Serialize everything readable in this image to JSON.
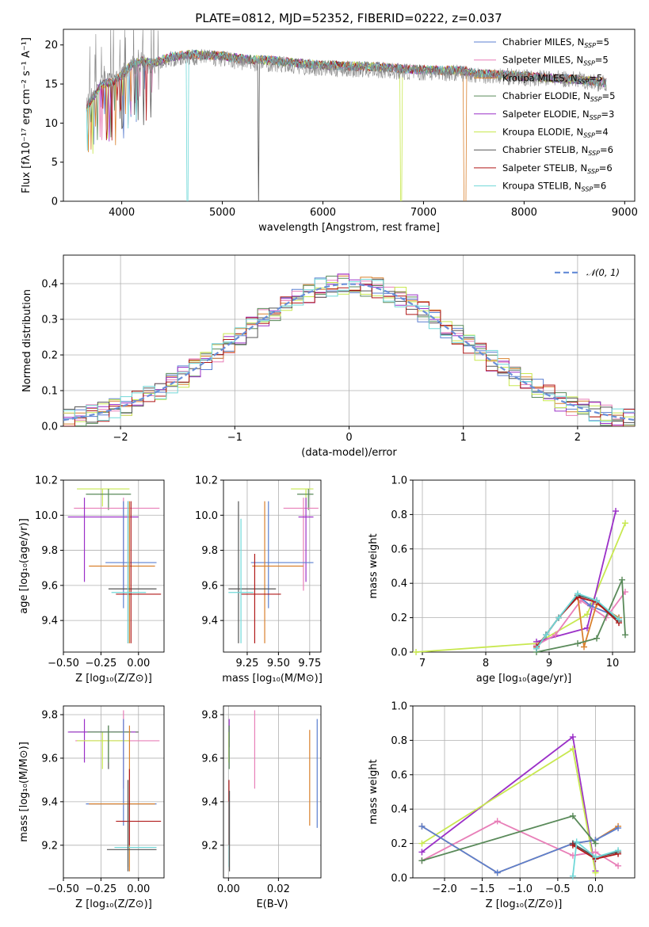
{
  "title": "PLATE=0812, MJD=52352, FIBERID=0222, z=0.037",
  "colors": {
    "chabrier_miles": "#5b7fd0",
    "salpeter_miles": "#e87fb8",
    "kroupa_miles": "#d9812e",
    "chabrier_elodie": "#5a8a5a",
    "salpeter_elodie": "#9b30c8",
    "kroupa_elodie": "#c8e850",
    "chabrier_stelib": "#555555",
    "salpeter_stelib": "#b01818",
    "kroupa_stelib": "#70d8d8",
    "gauss": "#6a8fd8",
    "grid": "#b0b0b0"
  },
  "legend": [
    {
      "key": "chabrier_miles",
      "main": "Chabrier MILES, N",
      "sub": "SSP",
      "eq": "=5"
    },
    {
      "key": "salpeter_miles",
      "main": "Salpeter MILES, N",
      "sub": "SSP",
      "eq": "=5"
    },
    {
      "key": "kroupa_miles",
      "main": "Kroupa MILES, N",
      "sub": "SSP",
      "eq": "=5"
    },
    {
      "key": "chabrier_elodie",
      "main": "Chabrier ELODIE, N",
      "sub": "SSP",
      "eq": "=5"
    },
    {
      "key": "salpeter_elodie",
      "main": "Salpeter ELODIE, N",
      "sub": "SSP",
      "eq": "=3"
    },
    {
      "key": "kroupa_elodie",
      "main": "Kroupa ELODIE, N",
      "sub": "SSP",
      "eq": "=4"
    },
    {
      "key": "chabrier_stelib",
      "main": "Chabrier STELIB, N",
      "sub": "SSP",
      "eq": "=6"
    },
    {
      "key": "salpeter_stelib",
      "main": "Salpeter STELIB, N",
      "sub": "SSP",
      "eq": "=6"
    },
    {
      "key": "kroupa_stelib",
      "main": "Kroupa STELIB, N",
      "sub": "SSP",
      "eq": "=6"
    }
  ],
  "chart_data": [
    {
      "id": "spectrum",
      "type": "line",
      "xlabel": "wavelength [Angstrom, rest frame]",
      "ylabel": "Flux [fλ10⁻¹⁷ erg cm⁻² s⁻¹ A⁻¹]",
      "xlim": [
        3420,
        9100
      ],
      "ylim": [
        0,
        22
      ],
      "xticks": [
        "4000",
        "5000",
        "6000",
        "7000",
        "8000",
        "9000"
      ],
      "yticks": [
        "0",
        "5",
        "10",
        "15",
        "20"
      ],
      "data_x": [
        3650,
        3800,
        3900,
        4000,
        4100,
        4200,
        4300,
        4500,
        4700,
        5000,
        5200,
        5500,
        5800,
        6000,
        6500,
        7000,
        7400,
        7500,
        8000,
        8500,
        8800
      ],
      "data_y": [
        12.5,
        15.5,
        15.8,
        16.5,
        17.2,
        17.5,
        17.3,
        18.2,
        18.5,
        18.3,
        17.8,
        17.6,
        17.2,
        17.0,
        16.8,
        16.5,
        16.4,
        16.2,
        15.8,
        15.6,
        15.0
      ],
      "model_y": [
        12.0,
        15.0,
        15.2,
        16.2,
        17.5,
        18.0,
        17.6,
        18.5,
        18.8,
        18.6,
        18.2,
        18.0,
        17.6,
        17.4,
        17.2,
        16.8,
        16.7,
        16.4,
        16.0,
        15.6,
        15.2
      ],
      "gap_series": {
        "kroupa_miles": 7410,
        "kroupa_elodie": 6780,
        "chabrier_stelib": 5360,
        "kroupa_stelib": 4650
      },
      "legend": "upper right"
    },
    {
      "id": "residuals",
      "type": "step",
      "xlabel": "(data-model)/error",
      "ylabel": "Normed distribution",
      "xlim": [
        -2.5,
        2.5
      ],
      "ylim": [
        0,
        0.48
      ],
      "xticks": [
        "−2",
        "−1",
        "0",
        "1",
        "2"
      ],
      "yticks": [
        "0.0",
        "0.1",
        "0.2",
        "0.3",
        "0.4"
      ],
      "gauss_label": "𝒩(0, 1)",
      "bin_width": 0.1,
      "bin_start": -2.5
    },
    {
      "id": "age_vs_Z",
      "type": "errorbar",
      "xlabel": "Z [log₁₀(Z/Z⊙)]",
      "ylabel": "age  [log₁₀(age/yr)]",
      "xlim": [
        -0.5,
        0.17
      ],
      "ylim": [
        9.22,
        10.2
      ],
      "xticks": [
        "−0.50",
        "−0.25",
        "0.00"
      ],
      "yticks": [
        "9.4",
        "9.6",
        "9.8",
        "10.0",
        "10.2"
      ],
      "points": [
        {
          "key": "kroupa_elodie",
          "x": -0.24,
          "xl": -0.41,
          "xh": -0.06,
          "y": 10.15,
          "yl": 10.05,
          "yh": 10.15
        },
        {
          "key": "chabrier_elodie",
          "x": -0.2,
          "xl": -0.35,
          "xh": -0.05,
          "y": 10.12,
          "yl": 10.03,
          "yh": 10.15
        },
        {
          "key": "salpeter_miles",
          "x": -0.1,
          "xl": -0.43,
          "xh": 0.14,
          "y": 10.04,
          "yl": 9.57,
          "yh": 10.1
        },
        {
          "key": "salpeter_elodie",
          "x": -0.36,
          "xl": -0.47,
          "xh": 0.0,
          "y": 9.99,
          "yl": 9.62,
          "yh": 10.1
        },
        {
          "key": "chabrier_miles",
          "x": -0.1,
          "xl": -0.22,
          "xh": 0.12,
          "y": 9.73,
          "yl": 9.47,
          "yh": 10.08
        },
        {
          "key": "kroupa_miles",
          "x": -0.06,
          "xl": -0.33,
          "xh": 0.11,
          "y": 9.71,
          "yl": 9.27,
          "yh": 10.08
        },
        {
          "key": "chabrier_stelib",
          "x": -0.07,
          "xl": -0.2,
          "xh": 0.12,
          "y": 9.58,
          "yl": 9.27,
          "yh": 10.08
        },
        {
          "key": "salpeter_stelib",
          "x": -0.05,
          "xl": -0.15,
          "xh": 0.15,
          "y": 9.55,
          "yl": 9.27,
          "yh": 10.08
        },
        {
          "key": "kroupa_stelib",
          "x": -0.07,
          "xl": -0.18,
          "xh": 0.05,
          "y": 9.56,
          "yl": 9.27,
          "yh": 10.08
        }
      ]
    },
    {
      "id": "age_vs_mass",
      "type": "errorbar",
      "xlabel": "mass [log₁₀(M/M⊙)]",
      "ylabel": "",
      "xlim": [
        9.06,
        9.84
      ],
      "ylim": [
        9.22,
        10.2
      ],
      "xticks": [
        "9.25",
        "9.50",
        "9.75"
      ],
      "yticks": [
        "9.4",
        "9.6",
        "9.8",
        "10.0",
        "10.2"
      ],
      "points": [
        {
          "key": "kroupa_elodie",
          "x": 9.72,
          "xl": 9.6,
          "xh": 9.78,
          "y": 10.15,
          "yl": 10.05,
          "yh": 10.15
        },
        {
          "key": "chabrier_elodie",
          "x": 9.74,
          "xl": 9.65,
          "xh": 9.78,
          "y": 10.12,
          "yl": 10.03,
          "yh": 10.15
        },
        {
          "key": "salpeter_miles",
          "x": 9.7,
          "xl": 9.54,
          "xh": 9.82,
          "y": 10.04,
          "yl": 9.57,
          "yh": 10.1
        },
        {
          "key": "salpeter_elodie",
          "x": 9.72,
          "xl": 9.66,
          "xh": 9.78,
          "y": 9.99,
          "yl": 9.62,
          "yh": 10.1
        },
        {
          "key": "chabrier_miles",
          "x": 9.42,
          "xl": 9.28,
          "xh": 9.78,
          "y": 9.73,
          "yl": 9.47,
          "yh": 10.08
        },
        {
          "key": "kroupa_miles",
          "x": 9.39,
          "xl": 9.29,
          "xh": 9.7,
          "y": 9.71,
          "yl": 9.27,
          "yh": 10.08
        },
        {
          "key": "chabrier_stelib",
          "x": 9.18,
          "xl": 9.1,
          "xh": 9.48,
          "y": 9.58,
          "yl": 9.27,
          "yh": 10.08
        },
        {
          "key": "salpeter_stelib",
          "x": 9.31,
          "xl": 9.2,
          "xh": 9.52,
          "y": 9.55,
          "yl": 9.27,
          "yh": 9.78
        },
        {
          "key": "kroupa_stelib",
          "x": 9.2,
          "xl": 9.1,
          "xh": 9.3,
          "y": 9.56,
          "yl": 9.27,
          "yh": 9.98
        }
      ]
    },
    {
      "id": "weight_vs_age",
      "type": "line",
      "xlabel": "age  [log₁₀(age/yr)]",
      "ylabel": "mass weight",
      "xlim": [
        6.85,
        10.35
      ],
      "ylim": [
        0,
        1.0
      ],
      "xticks": [
        "7",
        "8",
        "9",
        "10"
      ],
      "yticks": [
        "0.0",
        "0.2",
        "0.4",
        "0.6",
        "0.8",
        "1.0"
      ],
      "series": [
        {
          "key": "kroupa_elodie",
          "x": [
            6.9,
            8.8,
            9.6,
            10.2
          ],
          "y": [
            0.0,
            0.05,
            0.22,
            0.75
          ]
        },
        {
          "key": "salpeter_elodie",
          "x": [
            8.8,
            9.6,
            10.05
          ],
          "y": [
            0.06,
            0.14,
            0.82
          ]
        },
        {
          "key": "salpeter_miles",
          "x": [
            8.8,
            9.1,
            9.5,
            9.9,
            10.2
          ],
          "y": [
            0.04,
            0.1,
            0.3,
            0.2,
            0.35
          ]
        },
        {
          "key": "chabrier_miles",
          "x": [
            8.8,
            8.95,
            9.15,
            9.45,
            9.65,
            10.1
          ],
          "y": [
            0.02,
            0.1,
            0.2,
            0.33,
            0.27,
            0.2
          ]
        },
        {
          "key": "kroupa_miles",
          "x": [
            8.8,
            8.95,
            9.15,
            9.45,
            9.55,
            9.75,
            10.1
          ],
          "y": [
            0.02,
            0.1,
            0.2,
            0.33,
            0.03,
            0.28,
            0.2
          ]
        },
        {
          "key": "chabrier_elodie",
          "x": [
            8.8,
            9.45,
            9.75,
            10.15,
            10.2
          ],
          "y": [
            0.0,
            0.05,
            0.08,
            0.42,
            0.1
          ]
        },
        {
          "key": "chabrier_stelib",
          "x": [
            8.8,
            8.95,
            9.15,
            9.45,
            9.75,
            10.1
          ],
          "y": [
            0.02,
            0.1,
            0.2,
            0.33,
            0.3,
            0.18
          ]
        },
        {
          "key": "salpeter_stelib",
          "x": [
            8.8,
            8.95,
            9.15,
            9.45,
            9.75,
            10.1
          ],
          "y": [
            0.03,
            0.1,
            0.2,
            0.32,
            0.29,
            0.17
          ]
        },
        {
          "key": "kroupa_stelib",
          "x": [
            8.8,
            8.95,
            9.15,
            9.45,
            9.75,
            10.1
          ],
          "y": [
            0.02,
            0.1,
            0.2,
            0.34,
            0.3,
            0.19
          ]
        }
      ]
    },
    {
      "id": "mass_vs_Z",
      "type": "errorbar",
      "xlabel": "Z [log₁₀(Z/Z⊙)]",
      "ylabel": "mass [log₁₀(M/M⊙)]",
      "xlim": [
        -0.5,
        0.17
      ],
      "ylim": [
        9.05,
        9.84
      ],
      "xticks": [
        "−0.50",
        "−0.25",
        "0.00"
      ],
      "yticks": [
        "9.2",
        "9.4",
        "9.6",
        "9.8"
      ],
      "points": [
        {
          "key": "chabrier_stelib",
          "x": -0.2,
          "xl": -0.46,
          "xh": 0.0,
          "y": 9.72,
          "yl": 9.55,
          "yh": 9.75
        },
        {
          "key": "salpeter_elodie",
          "x": -0.36,
          "xl": -0.47,
          "xh": -0.02,
          "y": 9.72,
          "yl": 9.58,
          "yh": 9.78
        },
        {
          "key": "salpeter_miles",
          "x": -0.1,
          "xl": -0.42,
          "xh": 0.14,
          "y": 9.68,
          "yl": 9.46,
          "yh": 9.82
        },
        {
          "key": "kroupa_elodie",
          "x": -0.24,
          "xl": -0.41,
          "xh": -0.06,
          "y": 9.68,
          "yl": 9.55,
          "yh": 9.72
        },
        {
          "key": "chabrier_elodie",
          "x": -0.2,
          "xl": -0.34,
          "xh": -0.05,
          "y": 9.72,
          "yl": 9.58,
          "yh": 9.75
        },
        {
          "key": "chabrier_miles",
          "x": -0.1,
          "xl": -0.35,
          "xh": 0.12,
          "y": 9.39,
          "yl": 9.29,
          "yh": 9.78
        },
        {
          "key": "kroupa_miles",
          "x": -0.06,
          "xl": -0.33,
          "xh": 0.11,
          "y": 9.39,
          "yl": 9.08,
          "yh": 9.75
        },
        {
          "key": "salpeter_stelib",
          "x": -0.06,
          "xl": -0.15,
          "xh": 0.15,
          "y": 9.31,
          "yl": 9.2,
          "yh": 9.55
        },
        {
          "key": "kroupa_stelib",
          "x": -0.07,
          "xl": -0.16,
          "xh": 0.12,
          "y": 9.19,
          "yl": 9.1,
          "yh": 9.38
        },
        {
          "key": "chabrier_stelib",
          "x": -0.07,
          "xl": -0.21,
          "xh": 0.12,
          "y": 9.18,
          "yl": 9.08,
          "yh": 9.5
        }
      ]
    },
    {
      "id": "mass_vs_ebv",
      "type": "errorbar",
      "xlabel": "E(B-V)",
      "ylabel": "",
      "xlim": [
        -0.002,
        0.037
      ],
      "ylim": [
        9.05,
        9.84
      ],
      "xticks": [
        "0.00",
        "0.02"
      ],
      "yticks": [
        "9.2",
        "9.4",
        "9.6",
        "9.8"
      ],
      "points": [
        {
          "key": "chabrier_miles",
          "x": 0.0355,
          "y": 9.45,
          "yl": 9.28,
          "yh": 9.78
        },
        {
          "key": "kroupa_miles",
          "x": 0.0325,
          "y": 9.5,
          "yl": 9.29,
          "yh": 9.73
        },
        {
          "key": "salpeter_miles",
          "x": 0.0105,
          "y": 9.6,
          "yl": 9.46,
          "yh": 9.82
        },
        {
          "key": "salpeter_elodie",
          "x": 0.0003,
          "y": 9.72,
          "yl": 9.65,
          "yh": 9.78
        },
        {
          "key": "kroupa_elodie",
          "x": 0.0002,
          "y": 9.68,
          "yl": 9.58,
          "yh": 9.72
        },
        {
          "key": "chabrier_elodie",
          "x": 0.0003,
          "y": 9.7,
          "yl": 9.55,
          "yh": 9.75
        },
        {
          "key": "salpeter_stelib",
          "x": 0.0002,
          "y": 9.35,
          "yl": 9.2,
          "yh": 9.5
        },
        {
          "key": "kroupa_stelib",
          "x": 0.0003,
          "y": 9.2,
          "yl": 9.1,
          "yh": 9.4
        },
        {
          "key": "chabrier_stelib",
          "x": 0.0004,
          "y": 9.18,
          "yl": 9.08,
          "yh": 9.45
        }
      ]
    },
    {
      "id": "weight_vs_Z",
      "type": "line",
      "xlabel": "Z [log₁₀(Z/Z⊙)]",
      "ylabel": "mass weight",
      "xlim": [
        -2.42,
        0.52
      ],
      "ylim": [
        0,
        1.0
      ],
      "xticks": [
        "−2.0",
        "−1.5",
        "−1.0",
        "−0.5",
        "0.0"
      ],
      "yticks": [
        "0.0",
        "0.2",
        "0.4",
        "0.6",
        "0.8",
        "1.0"
      ],
      "series": [
        {
          "key": "salpeter_elodie",
          "x": [
            -2.3,
            -0.3,
            0.0
          ],
          "y": [
            0.15,
            0.82,
            0.04
          ]
        },
        {
          "key": "kroupa_elodie",
          "x": [
            -2.3,
            -0.3,
            0.0
          ],
          "y": [
            0.2,
            0.75,
            0.03
          ]
        },
        {
          "key": "salpeter_miles",
          "x": [
            -2.3,
            -1.3,
            -0.3,
            0.0,
            0.3
          ],
          "y": [
            0.1,
            0.33,
            0.13,
            0.15,
            0.07
          ]
        },
        {
          "key": "kroupa_miles",
          "x": [
            -2.3,
            -1.3,
            -0.3,
            0.0,
            0.3
          ],
          "y": [
            0.3,
            0.03,
            0.2,
            0.22,
            0.3
          ]
        },
        {
          "key": "chabrier_miles",
          "x": [
            -2.3,
            -1.3,
            -0.3,
            0.0,
            0.3
          ],
          "y": [
            0.3,
            0.03,
            0.2,
            0.22,
            0.29
          ]
        },
        {
          "key": "chabrier_elodie",
          "x": [
            -2.3,
            -0.3,
            0.0
          ],
          "y": [
            0.1,
            0.36,
            0.2
          ]
        },
        {
          "key": "chabrier_stelib",
          "x": [
            -0.3,
            0.0,
            0.3
          ],
          "y": [
            0.2,
            0.12,
            0.15
          ]
        },
        {
          "key": "salpeter_stelib",
          "x": [
            -0.3,
            0.0,
            0.3
          ],
          "y": [
            0.19,
            0.11,
            0.14
          ]
        },
        {
          "key": "kroupa_stelib",
          "x": [
            -0.3,
            -0.25,
            0.0,
            0.3
          ],
          "y": [
            0.01,
            0.21,
            0.12,
            0.16
          ]
        }
      ]
    }
  ]
}
